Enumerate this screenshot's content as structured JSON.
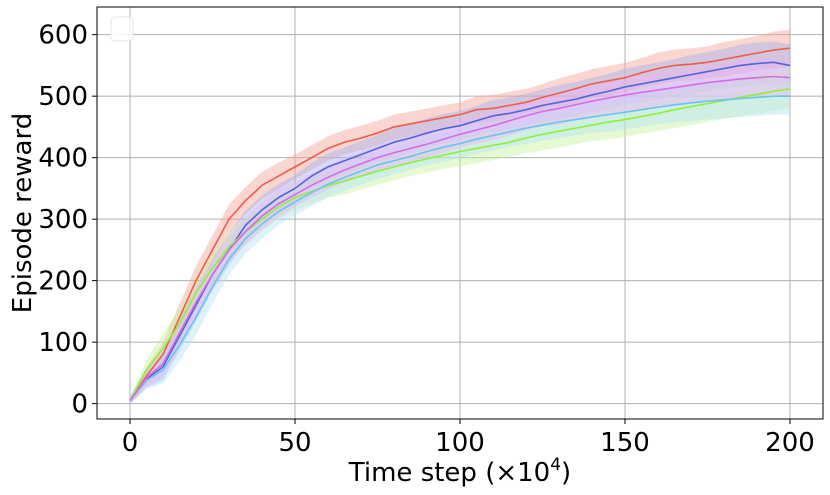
{
  "chart_data": {
    "type": "line",
    "xlabel": "Time step (×10",
    "xlabel_exponent": "4",
    "xlabel_close": ")",
    "ylabel": "Episode reward",
    "xlim": [
      -10,
      210
    ],
    "ylim": [
      -25,
      645
    ],
    "xticks": [
      0,
      50,
      100,
      150,
      200
    ],
    "yticks": [
      0,
      100,
      200,
      300,
      400,
      500,
      600
    ],
    "xtick_labels": [
      "0",
      "50",
      "100",
      "150",
      "200"
    ],
    "ytick_labels": [
      "0",
      "100",
      "200",
      "300",
      "400",
      "500",
      "600"
    ],
    "grid": true,
    "legend": "top-left (empty)",
    "x": [
      0,
      5,
      10,
      15,
      20,
      25,
      30,
      35,
      40,
      45,
      50,
      55,
      60,
      65,
      70,
      75,
      80,
      85,
      90,
      95,
      100,
      105,
      110,
      115,
      120,
      125,
      130,
      135,
      140,
      145,
      150,
      155,
      160,
      165,
      170,
      175,
      180,
      185,
      190,
      195,
      200
    ],
    "series": [
      {
        "color": "#f15b4a",
        "fill": "#f7a39a",
        "values": [
          5,
          45,
          80,
          140,
          200,
          250,
          300,
          330,
          355,
          370,
          385,
          400,
          415,
          425,
          432,
          440,
          450,
          455,
          460,
          465,
          470,
          478,
          480,
          485,
          490,
          498,
          505,
          512,
          520,
          525,
          530,
          538,
          545,
          550,
          552,
          555,
          560,
          565,
          570,
          575,
          578
        ],
        "spread": [
          6,
          14,
          20,
          22,
          24,
          24,
          24,
          22,
          22,
          22,
          20,
          20,
          20,
          20,
          20,
          20,
          20,
          20,
          20,
          20,
          20,
          22,
          22,
          22,
          22,
          22,
          24,
          24,
          24,
          24,
          24,
          24,
          26,
          26,
          26,
          26,
          28,
          28,
          28,
          30,
          30
        ]
      },
      {
        "color": "#4a67dc",
        "fill": "#a3b2ee",
        "values": [
          5,
          40,
          60,
          110,
          160,
          210,
          250,
          290,
          315,
          335,
          350,
          370,
          385,
          395,
          405,
          415,
          425,
          432,
          440,
          447,
          452,
          460,
          468,
          472,
          478,
          485,
          490,
          495,
          502,
          508,
          515,
          520,
          525,
          530,
          535,
          540,
          545,
          550,
          553,
          555,
          550
        ],
        "spread": [
          6,
          14,
          22,
          24,
          26,
          26,
          26,
          24,
          24,
          22,
          22,
          22,
          22,
          22,
          22,
          22,
          24,
          24,
          24,
          24,
          24,
          24,
          26,
          26,
          26,
          26,
          28,
          28,
          28,
          28,
          30,
          30,
          30,
          30,
          32,
          32,
          32,
          34,
          34,
          34,
          34
        ]
      },
      {
        "color": "#8ef037",
        "fill": "#c6f59b",
        "values": [
          5,
          55,
          90,
          130,
          180,
          220,
          255,
          280,
          300,
          320,
          335,
          345,
          355,
          362,
          370,
          378,
          385,
          392,
          398,
          404,
          410,
          415,
          420,
          425,
          432,
          438,
          443,
          448,
          453,
          458,
          462,
          467,
          472,
          478,
          483,
          488,
          493,
          498,
          503,
          508,
          512
        ],
        "spread": [
          6,
          16,
          24,
          24,
          24,
          22,
          22,
          22,
          20,
          20,
          20,
          20,
          20,
          22,
          22,
          22,
          22,
          22,
          22,
          22,
          24,
          24,
          24,
          24,
          24,
          26,
          26,
          26,
          26,
          28,
          28,
          28,
          28,
          30,
          30,
          30,
          30,
          30,
          32,
          32,
          32
        ]
      },
      {
        "color": "#66c5f0",
        "fill": "#b6e2f8",
        "values": [
          5,
          38,
          55,
          95,
          140,
          190,
          235,
          268,
          292,
          312,
          328,
          343,
          357,
          368,
          378,
          388,
          395,
          402,
          410,
          417,
          423,
          430,
          436,
          442,
          448,
          453,
          458,
          462,
          466,
          470,
          474,
          478,
          482,
          486,
          489,
          492,
          494,
          496,
          498,
          500,
          500
        ],
        "spread": [
          6,
          14,
          22,
          26,
          28,
          28,
          26,
          24,
          24,
          22,
          22,
          22,
          22,
          22,
          22,
          22,
          22,
          22,
          22,
          24,
          24,
          24,
          24,
          24,
          26,
          26,
          26,
          26,
          26,
          28,
          28,
          28,
          28,
          28,
          30,
          30,
          30,
          30,
          30,
          30,
          30
        ]
      },
      {
        "color": "#d86ae6",
        "fill": "#eeb3f5",
        "values": [
          5,
          42,
          65,
          115,
          165,
          210,
          250,
          280,
          305,
          325,
          340,
          355,
          368,
          380,
          390,
          400,
          408,
          415,
          422,
          430,
          438,
          445,
          452,
          460,
          468,
          475,
          480,
          486,
          492,
          497,
          502,
          506,
          510,
          514,
          518,
          522,
          525,
          528,
          530,
          532,
          530
        ],
        "spread": [
          6,
          14,
          22,
          24,
          24,
          24,
          22,
          22,
          22,
          22,
          20,
          20,
          20,
          20,
          20,
          20,
          22,
          22,
          22,
          22,
          22,
          22,
          24,
          24,
          24,
          24,
          26,
          26,
          26,
          26,
          26,
          28,
          28,
          28,
          28,
          28,
          30,
          30,
          30,
          30,
          30
        ]
      }
    ]
  }
}
